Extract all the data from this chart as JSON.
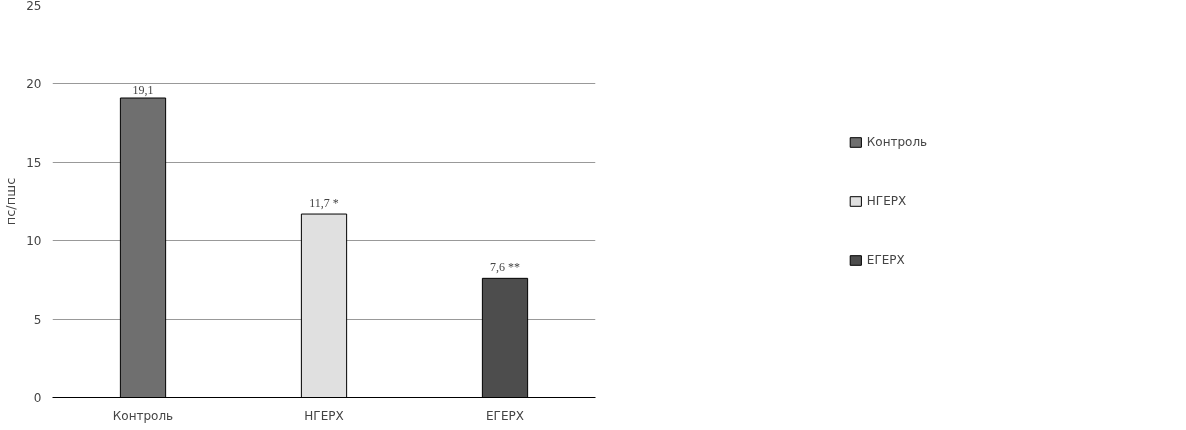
{
  "chart_data": {
    "type": "bar",
    "ylabel": "пс/пшс",
    "categories": [
      "Контроль",
      "НГЕРХ",
      "ЕГЕРХ"
    ],
    "series": [
      {
        "name": "Контроль",
        "color": "#6f6f6f",
        "values": [
          19.1,
          null,
          null
        ],
        "value_labels": [
          "19,1",
          null,
          null
        ]
      },
      {
        "name": "НГЕРХ",
        "color": "#e0e0e0",
        "values": [
          null,
          11.7,
          null
        ],
        "value_labels": [
          null,
          "11,7 *",
          null
        ]
      },
      {
        "name": "ЕГЕРХ",
        "color": "#4d4d4d",
        "values": [
          null,
          null,
          7.6
        ],
        "value_labels": [
          null,
          null,
          "7,6 **"
        ]
      }
    ],
    "ylim": [
      0,
      25
    ],
    "yticks": [
      0,
      5,
      10,
      15,
      20,
      25
    ],
    "grid": "y",
    "legend": "right"
  }
}
